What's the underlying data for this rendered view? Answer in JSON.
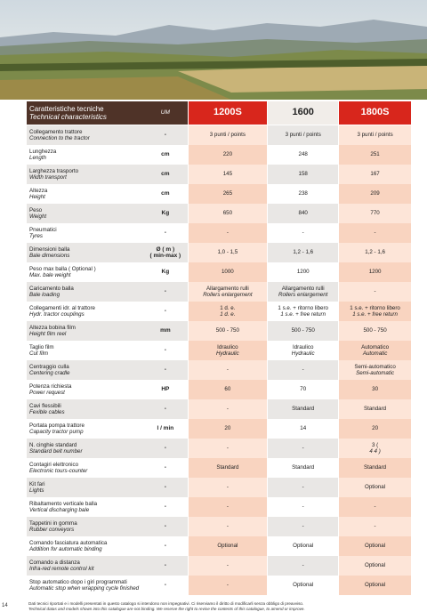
{
  "header": {
    "label": [
      "Caratteristiche tecniche",
      "Technical characteristics"
    ],
    "um": "UM",
    "models": [
      "1200S",
      "1600",
      "1800S"
    ]
  },
  "table": {
    "rows": [
      {
        "label": [
          "Collegamento trattore",
          "Connection to the tractor"
        ],
        "um": [
          "-"
        ],
        "values": [
          [
            "3 punti / points"
          ],
          [
            "3 punti / points"
          ],
          [
            "3 punti / points"
          ]
        ]
      },
      {
        "label": [
          "Lunghezza",
          "Length"
        ],
        "um": [
          "cm"
        ],
        "values": [
          [
            "220"
          ],
          [
            "248"
          ],
          [
            "251"
          ]
        ]
      },
      {
        "label": [
          "Larghezza trasporto",
          "Width transport"
        ],
        "um": [
          "cm"
        ],
        "values": [
          [
            "145"
          ],
          [
            "158"
          ],
          [
            "167"
          ]
        ]
      },
      {
        "label": [
          "Altezza",
          "Height"
        ],
        "um": [
          "cm"
        ],
        "values": [
          [
            "265"
          ],
          [
            "238"
          ],
          [
            "209"
          ]
        ]
      },
      {
        "label": [
          "Peso",
          "Weight"
        ],
        "um": [
          "Kg"
        ],
        "values": [
          [
            "650"
          ],
          [
            "840"
          ],
          [
            "770"
          ]
        ]
      },
      {
        "label": [
          "Pneumatici",
          "Tyres"
        ],
        "um": [
          "-"
        ],
        "values": [
          [
            "-"
          ],
          [
            "-"
          ],
          [
            "-"
          ]
        ]
      },
      {
        "label": [
          "Dimensioni balla",
          "Bale dimensions"
        ],
        "um": [
          "Ø ( m )",
          "( min-max )"
        ],
        "values": [
          [
            "1,0 - 1,5"
          ],
          [
            "1,2 - 1,6"
          ],
          [
            "1,2 - 1,6"
          ]
        ]
      },
      {
        "label": [
          "Peso max balla ( Optional )",
          "Max. bale weight"
        ],
        "um": [
          "Kg"
        ],
        "values": [
          [
            "1000"
          ],
          [
            "1200"
          ],
          [
            "1200"
          ]
        ]
      },
      {
        "label": [
          "Caricamento balla",
          "Bale loading"
        ],
        "um": [
          "-"
        ],
        "values": [
          [
            "Allargamento rulli",
            "Rollers enlargement"
          ],
          [
            "Allargamento rulli",
            "Rollers enlargement"
          ],
          [
            "-"
          ]
        ]
      },
      {
        "label": [
          "Collegamenti idr. al trattore",
          "Hydr. tractor couplings"
        ],
        "um": [
          "-"
        ],
        "values": [
          [
            "1 d. e.",
            "1 d. e."
          ],
          [
            "1 s.e. + ritorno libero",
            "1 s.e. + free return"
          ],
          [
            "1 s.e. + ritorno libero",
            "1 s.e. + free return"
          ]
        ]
      },
      {
        "label": [
          "Altezza bobina film",
          "Height film reel"
        ],
        "um": [
          "mm"
        ],
        "values": [
          [
            "500 - 750"
          ],
          [
            "500 - 750"
          ],
          [
            "500 - 750"
          ]
        ]
      },
      {
        "label": [
          "Taglio film",
          "Cut film"
        ],
        "um": [
          "-"
        ],
        "values": [
          [
            "Idraulico",
            "Hydraulic"
          ],
          [
            "Idraulico",
            "Hydraulic"
          ],
          [
            "Automatico",
            "Automatic"
          ]
        ]
      },
      {
        "label": [
          "Centraggio culla",
          "Centering cradle"
        ],
        "um": [
          "-"
        ],
        "values": [
          [
            "-"
          ],
          [
            "-"
          ],
          [
            "Semi-automatico",
            "Semi-automatic"
          ]
        ]
      },
      {
        "label": [
          "Potenza richiesta",
          "Power request"
        ],
        "um": [
          "HP"
        ],
        "values": [
          [
            "60"
          ],
          [
            "70"
          ],
          [
            "30"
          ]
        ]
      },
      {
        "label": [
          "Cavi flessibili",
          "Fexible cables"
        ],
        "um": [
          "-"
        ],
        "values": [
          [
            "-"
          ],
          [
            "Standard"
          ],
          [
            "Standard"
          ]
        ]
      },
      {
        "label": [
          "Portata pompa trattore",
          "Capacity tractor pump"
        ],
        "um": [
          "l / min"
        ],
        "values": [
          [
            "20"
          ],
          [
            "14"
          ],
          [
            "20"
          ]
        ]
      },
      {
        "label": [
          "N. cinghie standard",
          "Standard belt number"
        ],
        "um": [
          "-"
        ],
        "values": [
          [
            "-"
          ],
          [
            "-"
          ],
          [
            "3 (",
            "4 4 )"
          ]
        ]
      },
      {
        "label": [
          "Contagiri elettronico",
          "Electronic tours-counter"
        ],
        "um": [
          "-"
        ],
        "values": [
          [
            "Standard"
          ],
          [
            "Standard"
          ],
          [
            "Standard"
          ]
        ]
      },
      {
        "label": [
          "Kit fari",
          "Lights"
        ],
        "um": [
          "-"
        ],
        "values": [
          [
            "-"
          ],
          [
            "-"
          ],
          [
            "Optional"
          ]
        ]
      },
      {
        "label": [
          "Ribaltamento verticale balla",
          "Vertical discharging bale"
        ],
        "um": [
          "-"
        ],
        "values": [
          [
            "-"
          ],
          [
            "-"
          ],
          [
            "-"
          ]
        ]
      },
      {
        "label": [
          "Tappetini in gomma",
          "Rubber conveyors"
        ],
        "um": [
          "-"
        ],
        "values": [
          [
            "-"
          ],
          [
            "-"
          ],
          [
            "-"
          ]
        ]
      },
      {
        "label": [
          "Comando fasciatura automatica",
          "Addition for automatic binding"
        ],
        "um": [
          "-"
        ],
        "values": [
          [
            "Optional"
          ],
          [
            "Optional"
          ],
          [
            "Optional"
          ]
        ]
      },
      {
        "label": [
          "Comando a distanza",
          "Infra-red remote control kit"
        ],
        "um": [
          "-"
        ],
        "values": [
          [
            "-"
          ],
          [
            "-"
          ],
          [
            "Optional"
          ]
        ]
      },
      {
        "label": [
          "Stop automatico dopo i giri programmati",
          "Automatic stop when wrapping cycle finished"
        ],
        "um": [
          "-"
        ],
        "values": [
          [
            "-"
          ],
          [
            "Optional"
          ],
          [
            "Optional"
          ]
        ]
      }
    ]
  },
  "footer": {
    "page": "14",
    "note": [
      "Dati tecnici riportati e i modelli presentati in questo catalogo si intendono non impegnativi. Ci riserviamo il diritto di modificarli senza obbligo di preavviso.",
      "Technical datas and models shown into this catalogue are not binding. We reserve the right to revise the contents of this catalogue, to amend or improve."
    ]
  }
}
